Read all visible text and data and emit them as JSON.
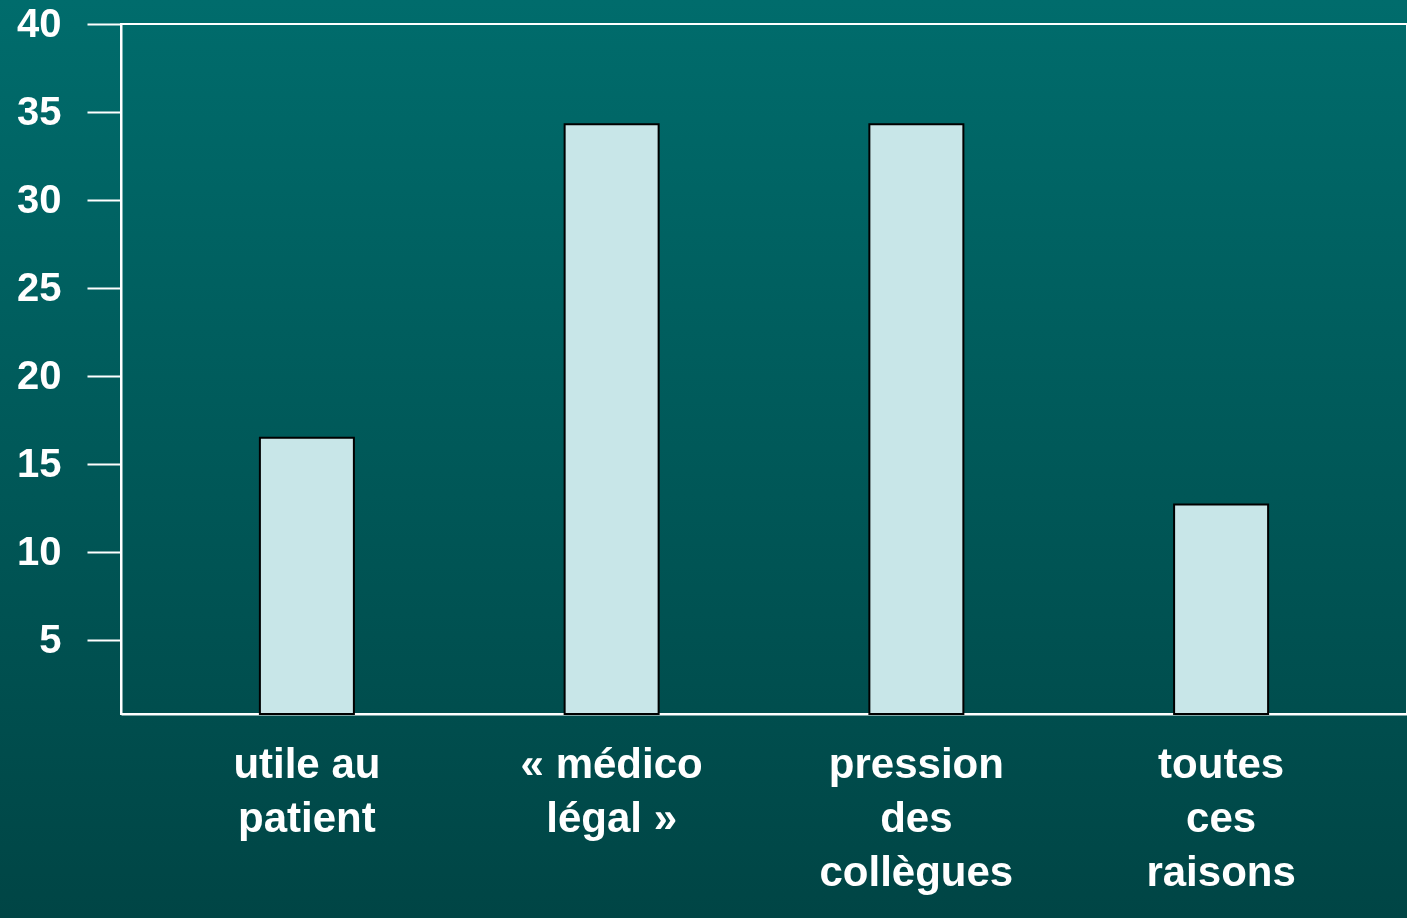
{
  "chart_data": {
    "type": "bar",
    "categories": [
      "utile au patient",
      "« médico légal »",
      "pression des collègues",
      "toutes ces raisons"
    ],
    "values": [
      16.5,
      34.3,
      34.3,
      12.7
    ],
    "color": "#c8e6e8",
    "ylim": [
      0.8,
      40
    ],
    "yticks": [
      5,
      10,
      15,
      20,
      25,
      30,
      35,
      40
    ],
    "grid": false
  }
}
